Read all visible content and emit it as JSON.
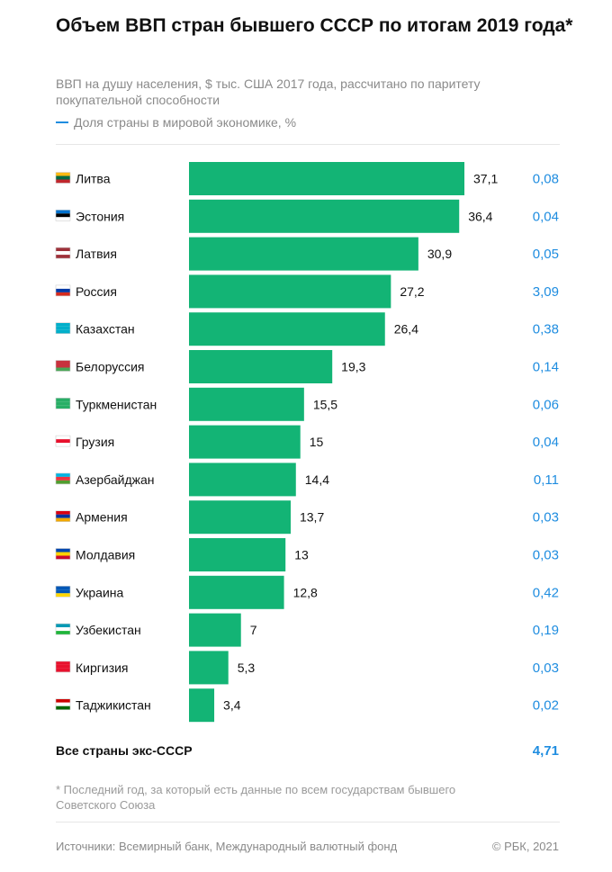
{
  "chart_data": {
    "type": "bar",
    "orientation": "horizontal",
    "title": "Объем ВВП стран бывшего СССР по итогам 2019 года*",
    "subtitle": "ВВП на душу населения, $ тыс. США 2017 года, рассчитано по паритету покупательной способности",
    "legend": "Доля страны в мировой экономике, %",
    "categories": [
      "Литва",
      "Эстония",
      "Латвия",
      "Россия",
      "Казахстан",
      "Белоруссия",
      "Туркменистан",
      "Грузия",
      "Азербайджан",
      "Армения",
      "Молдавия",
      "Украина",
      "Узбекистан",
      "Киргизия",
      "Таджикистан"
    ],
    "values": [
      37.1,
      36.4,
      30.9,
      27.2,
      26.4,
      19.3,
      15.5,
      15,
      14.4,
      13.7,
      13,
      12.8,
      7,
      5.3,
      3.4
    ],
    "value_labels": [
      "37,1",
      "36,4",
      "30,9",
      "27,2",
      "26,4",
      "19,3",
      "15,5",
      "15",
      "14,4",
      "13,7",
      "13",
      "12,8",
      "7",
      "5,3",
      "3,4"
    ],
    "share_values": [
      0.08,
      0.04,
      0.05,
      3.09,
      0.38,
      0.14,
      0.06,
      0.04,
      0.11,
      0.03,
      0.03,
      0.42,
      0.19,
      0.03,
      0.02
    ],
    "share_labels": [
      "0,08",
      "0,04",
      "0,05",
      "3,09",
      "0,38",
      "0,14",
      "0,06",
      "0,04",
      "0,11",
      "0,03",
      "0,03",
      "0,42",
      "0,19",
      "0,03",
      "0,02"
    ],
    "total": {
      "label": "Все страны экс-СССР",
      "share": "4,71"
    },
    "colors": {
      "bar": "#13b475",
      "share": "#1f8de0"
    }
  },
  "footnote": "* Последний год, за который есть данные по всем государствам бывшего Советского Союза",
  "source": "Источники: Всемирный банк, Международный валютный фонд",
  "copyright": "© РБК, 2021"
}
